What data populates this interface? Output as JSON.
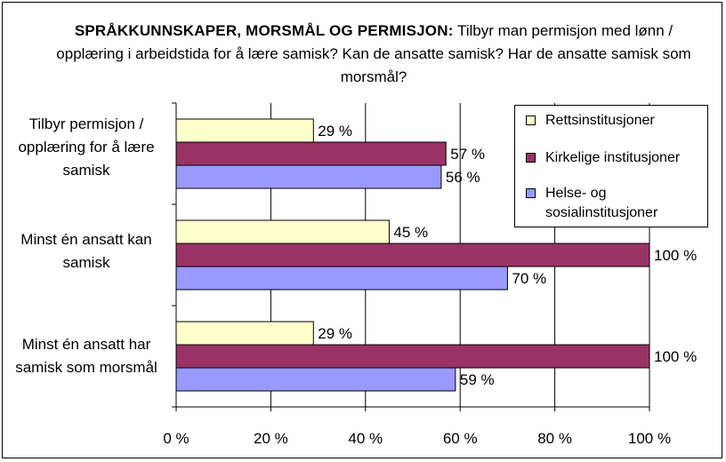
{
  "chart_data": {
    "type": "bar",
    "orientation": "horizontal",
    "title_bold": "SPRÅKKUNNSKAPER, MORSMÅL OG PERMISJON:",
    "title_rest": "Tilbyr man permisjon med lønn / opplæring i arbeidstida for å lære samisk? Kan de ansatte samisk? Har de ansatte samisk som morsmål?",
    "categories": [
      "Tilbyr permisjon / opplæring for å lære samisk",
      "Minst én ansatt kan samisk",
      "Minst én ansatt har samisk som morsmål"
    ],
    "series": [
      {
        "name": "Rettsinstitusjoner",
        "color": "#ffffcc",
        "values": [
          29,
          45,
          29
        ]
      },
      {
        "name": "Kirkelige institusjoner",
        "color": "#993366",
        "values": [
          57,
          100,
          100
        ]
      },
      {
        "name": "Helse- og sosialinstitusjoner",
        "color": "#9999ff",
        "values": [
          56,
          70,
          59
        ]
      }
    ],
    "value_labels": [
      [
        "29 %",
        "45 %",
        "29 %"
      ],
      [
        "57 %",
        "100 %",
        "100 %"
      ],
      [
        "56 %",
        "70 %",
        "59 %"
      ]
    ],
    "x_ticks": [
      "0 %",
      "20 %",
      "40 %",
      "60 %",
      "80 %",
      "100 %"
    ],
    "xlim": [
      0,
      100
    ],
    "grid": "vertical",
    "legend_position": "top-right"
  }
}
